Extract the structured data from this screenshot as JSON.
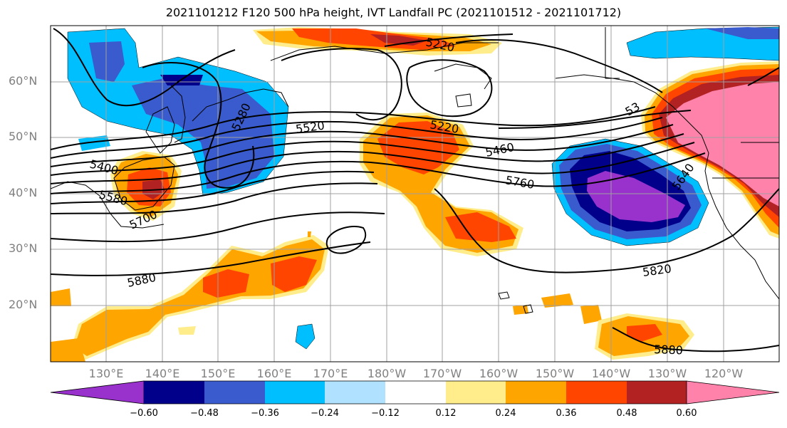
{
  "title": "2021101212 F120 500 hPa height, IVT Landfall PC (2021101512 - 2021101712)",
  "latitude_labels": [
    "60°N",
    "50°N",
    "40°N",
    "30°N",
    "20°N"
  ],
  "longitude_labels": [
    "130°E",
    "140°E",
    "150°E",
    "160°E",
    "170°E",
    "180°W",
    "170°W",
    "160°W",
    "150°W",
    "140°W",
    "130°W",
    "120°W"
  ],
  "contour_labels": [
    "5220",
    "5220",
    "5280",
    "5520",
    "5460",
    "5760",
    "5820",
    "5880",
    "5880",
    "5400",
    "5580",
    "5700",
    "5640",
    "53"
  ],
  "colorbar": {
    "tick_labels": [
      "−0.60",
      "−0.48",
      "−0.36",
      "−0.24",
      "−0.12",
      "0.12",
      "0.24",
      "0.36",
      "0.48",
      "0.60"
    ],
    "colors": [
      "#9932CC",
      "#00008B",
      "#3A5BCD",
      "#00BFFF",
      "#B0E2FF",
      "#FFFFFF",
      "#FFEC8B",
      "#FFA500",
      "#FF4500",
      "#B22222",
      "#FF82AB"
    ]
  }
}
